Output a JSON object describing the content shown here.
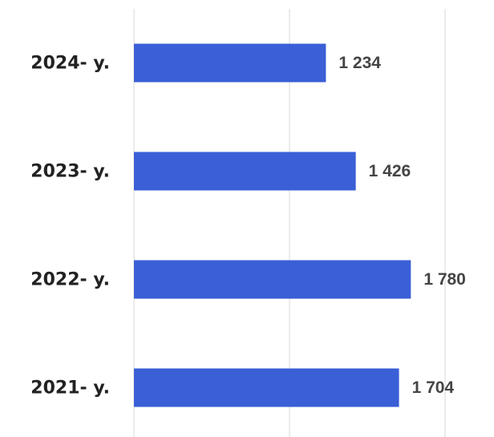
{
  "chart_data": {
    "type": "barh",
    "categories": [
      "2024- y.",
      "2023- y.",
      "2022- y.",
      "2021- y."
    ],
    "values": [
      1234,
      1426,
      1780,
      1704
    ],
    "value_labels": [
      "1 234",
      "1 426",
      "1 780",
      "1 704"
    ],
    "color": "#3a5fd6",
    "xlim": [
      0,
      2000
    ],
    "xticks": [
      0,
      1000,
      2000
    ],
    "grid": true
  }
}
